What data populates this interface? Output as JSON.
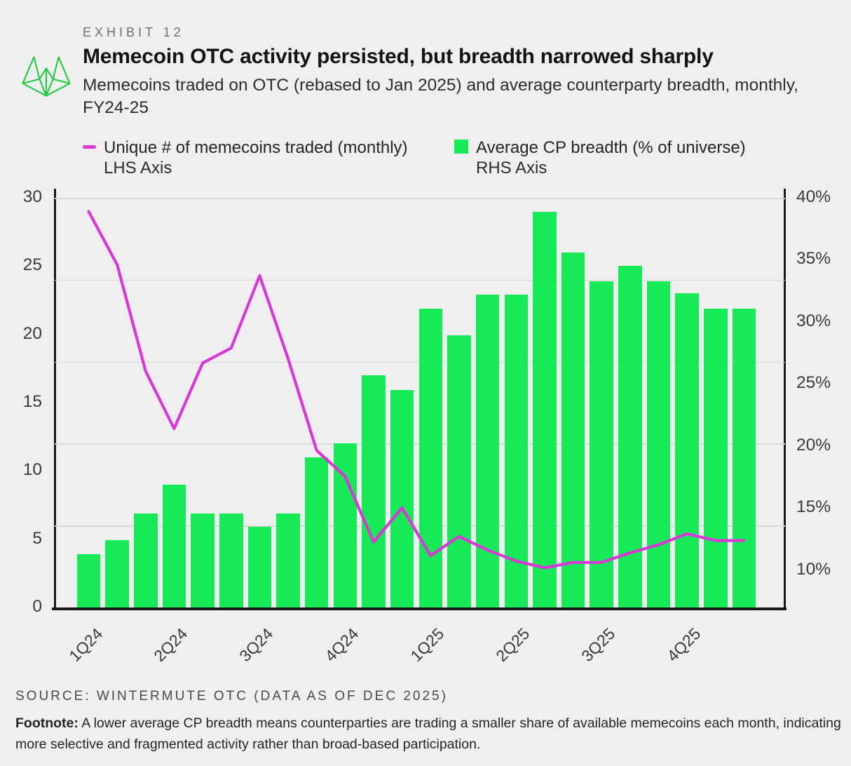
{
  "exhibit_label": "EXHIBIT 12",
  "title": "Memecoin OTC activity persisted, but breadth narrowed sharply",
  "subtitle": "Memecoins traded on OTC (rebased to Jan 2025) and average counterparty breadth, monthly,  FY24-25",
  "legend": {
    "line": {
      "label": "Unique # of memecoins traded (monthly)",
      "sublabel": "LHS Axis",
      "color": "#d938d6"
    },
    "bar": {
      "label": "Average CP breadth (% of universe)",
      "sublabel": "RHS Axis",
      "color": "#16eb57"
    }
  },
  "source": "SOURCE: WINTERMUTE OTC (DATA AS OF DEC 2025)",
  "footnote_label": "Footnote:",
  "footnote_text": " A lower average CP breadth means counterparties are trading a smaller share of available memecoins each month, indicating more selective and fragmented activity rather than broad-based participation.",
  "colors": {
    "background": "#efefef",
    "bar_green": "#16eb57",
    "line_magenta": "#d938d6",
    "logo_green": "#1ecb3e",
    "gridline": "#d9d9d9",
    "axis_spine": "#191919",
    "title_text": "#141414",
    "muted_text": "#6f6f6f"
  },
  "chart_data": {
    "type": "bar+line combo",
    "months": 24,
    "x_tick_labels": [
      "1Q24",
      "2Q24",
      "3Q24",
      "4Q24",
      "1Q25",
      "2Q25",
      "3Q25",
      "4Q25"
    ],
    "x_tick_month_index": [
      0,
      3,
      6,
      9,
      12,
      15,
      18,
      21
    ],
    "lhs_axis": {
      "label": "Unique # of memecoins traded (monthly)",
      "ticks": [
        30,
        25,
        20,
        15,
        10,
        5,
        0
      ],
      "range": [
        0,
        30
      ]
    },
    "rhs_axis": {
      "label": "Average CP breadth (% of universe)",
      "ticks": [
        40,
        35,
        30,
        25,
        20,
        15,
        10
      ],
      "suffix": "%",
      "visible_range": [
        7,
        40
      ]
    },
    "grid": {
      "horizontal_divisions": 5,
      "vertical": false
    },
    "series": [
      {
        "name": "Average CP breadth (% of universe)",
        "type": "bar",
        "axis": "RHS",
        "unit": "%",
        "color": "#16eb57",
        "values": [
          11.3,
          12.4,
          14.6,
          16.9,
          14.6,
          14.6,
          13.5,
          14.6,
          19.1,
          20.2,
          25.7,
          24.5,
          31.1,
          28.9,
          32.2,
          32.2,
          38.9,
          35.6,
          33.3,
          34.5,
          33.3,
          32.3,
          31.1,
          31.1
        ]
      },
      {
        "name": "Unique # of memecoins traded (monthly)",
        "type": "line",
        "axis": "LHS",
        "unit": "count",
        "color": "#d938d6",
        "values": [
          29.0,
          25.1,
          17.3,
          13.1,
          17.9,
          19.0,
          24.3,
          18.2,
          11.5,
          9.6,
          4.8,
          7.3,
          3.8,
          5.2,
          4.2,
          3.4,
          2.9,
          3.3,
          3.3,
          4.0,
          4.6,
          5.4,
          4.9,
          4.9
        ]
      }
    ]
  }
}
